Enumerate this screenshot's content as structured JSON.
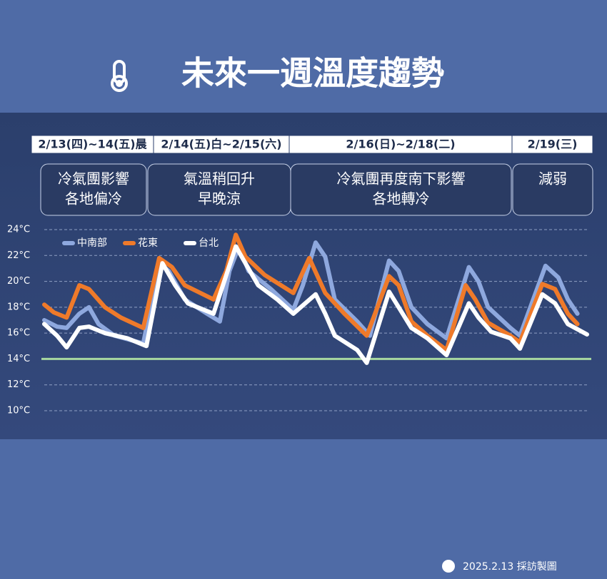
{
  "title": "未來一週溫度趨勢",
  "periods": [
    {
      "date": "2/13(四)~14(五)晨",
      "note": [
        "冷氣團影響",
        "各地偏冷"
      ]
    },
    {
      "date": "2/14(五)白~2/15(六)",
      "note": [
        "氣溫稍回升",
        "早晚涼"
      ]
    },
    {
      "date": "2/16(日)~2/18(二)",
      "note": [
        "冷氣團再度南下影響",
        "各地轉冷"
      ]
    },
    {
      "date": "2/19(三)",
      "note": [
        "減弱"
      ]
    }
  ],
  "chart_data": {
    "type": "line",
    "xlim": [
      0,
      170
    ],
    "ylim": [
      10,
      24
    ],
    "yticks": [
      {
        "value": 24,
        "label": "24°C"
      },
      {
        "value": 22,
        "label": "22°C"
      },
      {
        "value": 20,
        "label": "20°C"
      },
      {
        "value": 18,
        "label": "18°C"
      },
      {
        "value": 16,
        "label": "16°C"
      },
      {
        "value": 14,
        "label": "14°C"
      },
      {
        "value": 12,
        "label": "12°C"
      },
      {
        "value": 10,
        "label": "10°C"
      }
    ],
    "grid": true,
    "legend": "top-left",
    "reference_line": {
      "value": 14,
      "color": "#a8d8a0"
    },
    "series": [
      {
        "name": "中南部",
        "color": "#8ea8de",
        "x": [
          0,
          4,
          7,
          11,
          14,
          17,
          22,
          31,
          36,
          39,
          44,
          51,
          55,
          58,
          61,
          64,
          71,
          78,
          81,
          85,
          88,
          91,
          98,
          102,
          108,
          111,
          115,
          120,
          126,
          133,
          136,
          139,
          146,
          149,
          157,
          161,
          164,
          167
        ],
        "values": [
          17.0,
          16.5,
          16.4,
          17.5,
          18.0,
          16.7,
          15.8,
          15.2,
          21.4,
          20.8,
          18.6,
          17.5,
          16.9,
          20.8,
          22.7,
          20.8,
          19.4,
          17.8,
          19.7,
          23.0,
          21.9,
          18.6,
          16.9,
          15.8,
          21.6,
          20.8,
          18.0,
          16.7,
          15.6,
          21.1,
          20.0,
          18.0,
          16.4,
          15.8,
          21.2,
          20.3,
          18.6,
          17.5
        ]
      },
      {
        "name": "花東",
        "color": "#ef7a2a",
        "x": [
          0,
          3,
          7,
          11,
          14,
          19,
          24,
          31,
          36,
          40,
          44,
          53,
          57,
          60,
          63,
          69,
          78,
          83,
          88,
          94,
          101,
          108,
          111,
          115,
          120,
          126,
          132,
          135,
          139,
          146,
          149,
          156,
          160,
          164,
          167
        ],
        "values": [
          18.2,
          17.6,
          17.2,
          19.7,
          19.4,
          18.0,
          17.2,
          16.4,
          21.8,
          21.1,
          19.7,
          18.6,
          20.8,
          23.6,
          21.9,
          20.5,
          19.1,
          21.8,
          19.1,
          17.5,
          15.8,
          20.4,
          19.7,
          16.9,
          15.8,
          14.7,
          19.7,
          18.6,
          16.8,
          15.8,
          15.3,
          19.8,
          19.4,
          17.5,
          16.7
        ]
      },
      {
        "name": "台北",
        "color": "#ffffff",
        "x": [
          0,
          4,
          7,
          11,
          14,
          19,
          26,
          32,
          37,
          41,
          45,
          53,
          60,
          63,
          67,
          73,
          78,
          85,
          88,
          91,
          98,
          101,
          108,
          111,
          115,
          120,
          126,
          133,
          136,
          140,
          146,
          149,
          156,
          160,
          164,
          170
        ],
        "values": [
          16.7,
          15.8,
          14.9,
          16.4,
          16.5,
          16.0,
          15.6,
          15.0,
          21.4,
          19.7,
          18.3,
          17.5,
          22.7,
          21.4,
          19.7,
          18.6,
          17.5,
          19.0,
          17.5,
          15.8,
          14.7,
          13.7,
          19.2,
          18.0,
          16.4,
          15.6,
          14.3,
          18.3,
          17.2,
          16.1,
          15.6,
          14.8,
          19.0,
          18.3,
          16.7,
          15.9
        ]
      }
    ]
  },
  "footer": "2025.2.13 採訪製圖"
}
